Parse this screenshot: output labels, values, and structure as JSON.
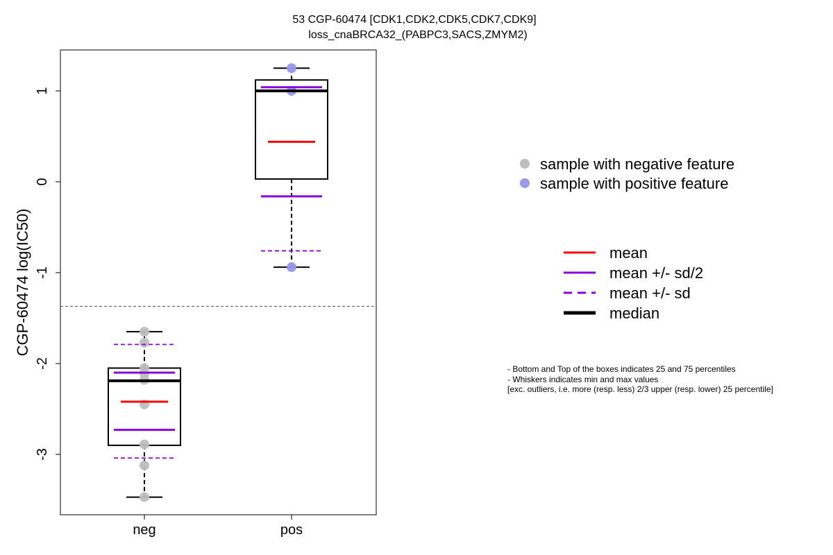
{
  "title": {
    "line1": "53 CGP-60474 [CDK1,CDK2,CDK5,CDK7,CDK9]",
    "line2": "loss_cnaBRCA32_(PABPC3,SACS,ZMYM2)"
  },
  "legend_points": [
    {
      "label": "sample with negative feature",
      "color": "#bebebe"
    },
    {
      "label": "sample with positive feature",
      "color": "#9999ee"
    }
  ],
  "legend_lines": [
    {
      "label": "mean",
      "color": "#ff0000",
      "style": "solid"
    },
    {
      "label": "mean +/- sd/2",
      "color": "#8800dd",
      "style": "solid"
    },
    {
      "label": "mean +/- sd",
      "color": "#8800dd",
      "style": "dashed"
    },
    {
      "label": "median",
      "color": "#000000",
      "style": "solid-thick"
    }
  ],
  "notes": [
    "- Bottom and Top of the boxes indicates 25 and 75 percentiles",
    "- Whiskers indicates min and max values",
    "[exc. outliers, i.e. more (resp. less) 2/3 upper (resp. lower) 25 percentile]"
  ],
  "chart_data": {
    "type": "box",
    "ylabel": "CGP-60474 log(IC50)",
    "ylim": [
      -3.6,
      1.45
    ],
    "yticks": [
      -3,
      -2,
      -1,
      0,
      1
    ],
    "categories": [
      "neg",
      "pos"
    ],
    "threshold_line": -1.37,
    "groups": [
      {
        "name": "neg",
        "point_color": "#bebebe",
        "points": [
          -1.65,
          -1.77,
          -2.05,
          -2.11,
          -2.18,
          -2.45,
          -2.89,
          -3.12,
          -3.47
        ],
        "q1": -2.9,
        "median": -2.19,
        "q3": -2.05,
        "whisker_low": -3.47,
        "whisker_high": -1.65,
        "mean": -2.42,
        "mean_minus_half_sd": -2.73,
        "mean_plus_half_sd": -2.1,
        "mean_minus_sd": -3.04,
        "mean_plus_sd": -1.79
      },
      {
        "name": "pos",
        "point_color": "#9999ee",
        "points": [
          1.25,
          1.0,
          -0.94
        ],
        "q1": 0.03,
        "median": 1.0,
        "q3": 1.12,
        "whisker_low": -0.94,
        "whisker_high": 1.25,
        "mean": 0.44,
        "mean_minus_half_sd": -0.16,
        "mean_plus_half_sd": 1.04,
        "mean_minus_sd": -0.76,
        "mean_plus_sd": null
      }
    ]
  }
}
